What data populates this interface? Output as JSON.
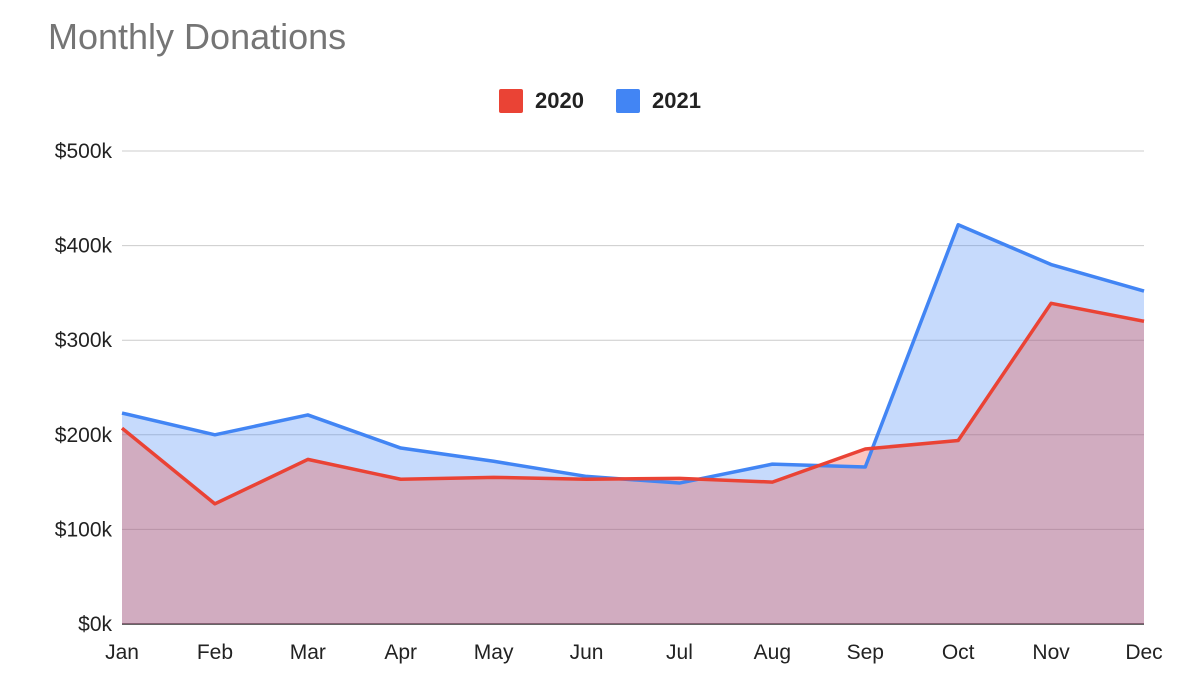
{
  "chart_data": {
    "type": "area",
    "title": "Monthly Donations",
    "xlabel": "",
    "ylabel": "",
    "categories": [
      "Jan",
      "Feb",
      "Mar",
      "Apr",
      "May",
      "Jun",
      "Jul",
      "Aug",
      "Sep",
      "Oct",
      "Nov",
      "Dec"
    ],
    "series": [
      {
        "name": "2020",
        "color": "#ea4335",
        "values": [
          207000,
          127000,
          174000,
          153000,
          155000,
          153000,
          154000,
          150000,
          185000,
          194000,
          339000,
          320000
        ]
      },
      {
        "name": "2021",
        "color": "#4285f4",
        "values": [
          223000,
          200000,
          221000,
          186000,
          172000,
          156000,
          149000,
          169000,
          166000,
          422000,
          380000,
          352000
        ]
      }
    ],
    "ylim": [
      0,
      500000
    ],
    "yticks": [
      0,
      100000,
      200000,
      300000,
      400000,
      500000
    ],
    "ytick_labels": [
      "$0k",
      "$100k",
      "$200k",
      "$300k",
      "$400k",
      "$500k"
    ],
    "grid": true,
    "legend_position": "top-center"
  }
}
